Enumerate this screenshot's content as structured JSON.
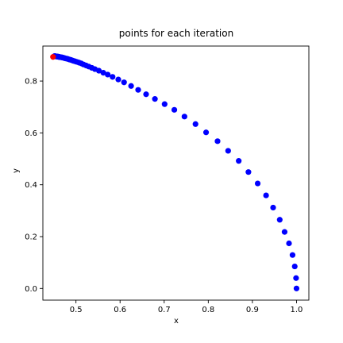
{
  "chart_data": {
    "type": "scatter",
    "title": "points for each iteration",
    "xlabel": "x",
    "ylabel": "y",
    "xlim": [
      0.425,
      1.028
    ],
    "ylim": [
      -0.045,
      0.935
    ],
    "xticks": [
      "0.5",
      "0.6",
      "0.7",
      "0.8",
      "0.9",
      "1.0"
    ],
    "yticks": [
      "0.0",
      "0.2",
      "0.4",
      "0.6",
      "0.8"
    ],
    "grid": false,
    "legend": "none",
    "colors": {
      "series": "#0000ff",
      "highlight": "#ff0000",
      "axis": "#000000"
    },
    "series": [
      {
        "color": "#0000ff",
        "x": [
          1.0,
          0.999,
          0.996,
          0.991,
          0.983,
          0.973,
          0.962,
          0.947,
          0.931,
          0.912,
          0.891,
          0.869,
          0.845,
          0.821,
          0.795,
          0.771,
          0.746,
          0.723,
          0.701,
          0.679,
          0.659,
          0.641,
          0.625,
          0.609,
          0.596,
          0.583,
          0.572,
          0.562,
          0.552,
          0.543,
          0.536,
          0.529,
          0.523,
          0.517,
          0.512,
          0.507,
          0.502,
          0.498,
          0.494,
          0.491,
          0.488,
          0.485,
          0.482,
          0.48,
          0.477,
          0.475,
          0.473,
          0.471,
          0.469,
          0.468,
          0.466,
          0.465,
          0.463,
          0.462,
          0.461,
          0.46,
          0.459,
          0.458,
          0.457,
          0.456,
          0.455,
          0.454,
          0.454,
          0.453,
          0.452,
          0.452,
          0.451
        ],
        "y": [
          0.0,
          0.04,
          0.085,
          0.129,
          0.174,
          0.218,
          0.265,
          0.312,
          0.359,
          0.405,
          0.449,
          0.492,
          0.531,
          0.568,
          0.602,
          0.634,
          0.663,
          0.689,
          0.711,
          0.731,
          0.749,
          0.766,
          0.781,
          0.795,
          0.806,
          0.816,
          0.825,
          0.832,
          0.84,
          0.846,
          0.851,
          0.856,
          0.86,
          0.864,
          0.868,
          0.871,
          0.874,
          0.876,
          0.878,
          0.88,
          0.882,
          0.883,
          0.885,
          0.886,
          0.887,
          0.888,
          0.889,
          0.89,
          0.891,
          0.891,
          0.892,
          0.892,
          0.893,
          0.893,
          0.893,
          0.894,
          0.894,
          0.894,
          0.895,
          0.895,
          0.895,
          0.895,
          0.895,
          0.896,
          0.896,
          0.896,
          0.896
        ]
      },
      {
        "color": "#ff0000",
        "x": [
          0.448
        ],
        "y": [
          0.893
        ]
      }
    ]
  }
}
